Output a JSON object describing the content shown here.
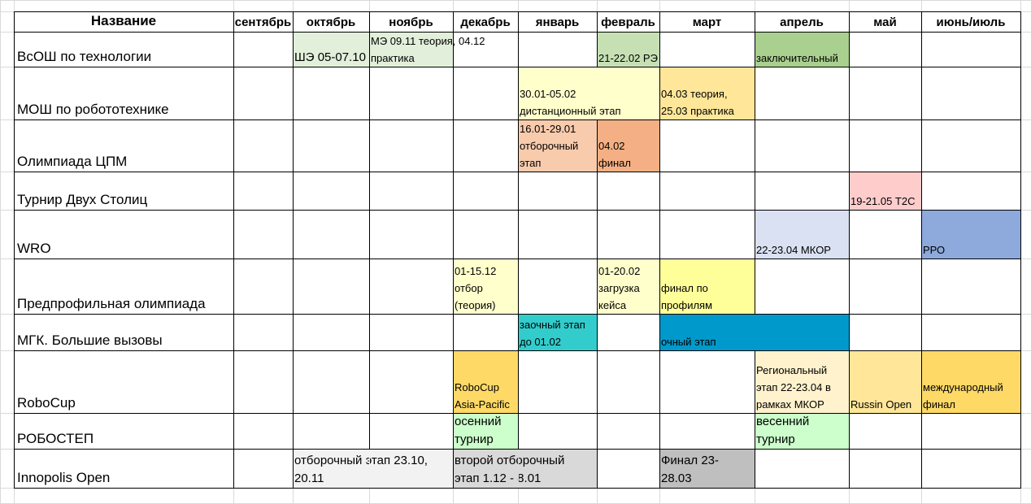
{
  "headers": {
    "name": "Название",
    "months": [
      "сентябрь",
      "октябрь",
      "ноябрь",
      "декабрь",
      "январь",
      "февраль",
      "март",
      "апрель",
      "май",
      "июнь/июль"
    ]
  },
  "rows": [
    {
      "name": "ВсОШ по технологии",
      "events": [
        {
          "col": 1,
          "span": 1,
          "lines": [
            "ШЭ 05-07.10"
          ],
          "color": "#e2efda",
          "big": true
        },
        {
          "col": 2,
          "span": 1,
          "lines": [
            "МЭ 09.11 теория, 04.12",
            "практика"
          ],
          "color": "#e2efda"
        },
        {
          "col": 5,
          "span": 1,
          "lines": [
            "21-22.02  РЭ"
          ],
          "color": "#c6e0b4"
        },
        {
          "col": 7,
          "span": 1,
          "lines": [
            "заключительный"
          ],
          "color": "#a9d08e"
        }
      ]
    },
    {
      "name": "МОШ по робототехнике",
      "events": [
        {
          "col": 4,
          "span": 2,
          "lines": [
            " 30.01-05.02",
            "дистанционный этап"
          ],
          "color": "#ffffcc"
        },
        {
          "col": 6,
          "span": 1,
          "lines": [
            "04.03 теория,",
            "25.03 практика"
          ],
          "color": "#ffe699"
        }
      ]
    },
    {
      "name": "Олимпиада ЦПМ",
      "events": [
        {
          "col": 4,
          "span": 1,
          "lines": [
            "16.01-29.01",
            "отборочный",
            "этап"
          ],
          "color": "#f8cbad"
        },
        {
          "col": 5,
          "span": 1,
          "lines": [
            "04.02",
            "финал"
          ],
          "color": "#f4b084"
        }
      ]
    },
    {
      "name": "Турнир Двух Столиц",
      "events": [
        {
          "col": 8,
          "span": 1,
          "lines": [
            "19-21.05 Т2С"
          ],
          "color": "#ffcccc"
        }
      ]
    },
    {
      "name": "WRO",
      "events": [
        {
          "col": 7,
          "span": 1,
          "lines": [
            " 22-23.04 МКОР"
          ],
          "color": "#d9e1f2"
        },
        {
          "col": 9,
          "span": 1,
          "lines": [
            "РРО"
          ],
          "color": "#8ea9db"
        }
      ]
    },
    {
      "name": "Предпрофильная олимпиада",
      "events": [
        {
          "col": 3,
          "span": 1,
          "lines": [
            "01-15.12",
            "отбор",
            "(теория)"
          ],
          "color": "#ffffcc"
        },
        {
          "col": 5,
          "span": 1,
          "lines": [
            "01-20.02",
            "загрузка",
            "кейса"
          ],
          "color": "#ffffcc"
        },
        {
          "col": 6,
          "span": 1,
          "lines": [
            "финал по",
            "профилям"
          ],
          "color": "#ffff99"
        }
      ]
    },
    {
      "name": "МГК. Большие вызовы",
      "events": [
        {
          "col": 4,
          "span": 1,
          "lines": [
            "заочный этап",
            "до 01.02"
          ],
          "color": "#33cccc"
        },
        {
          "col": 6,
          "span": 2,
          "lines": [
            "очный этап"
          ],
          "color": "#0099cc"
        }
      ]
    },
    {
      "name": "RoboCup",
      "events": [
        {
          "col": 3,
          "span": 1,
          "lines": [
            "RoboCup",
            "Asia-Pacific"
          ],
          "color": "#ffd966"
        },
        {
          "col": 7,
          "span": 1,
          "lines": [
            "Региональный",
            "этап 22-23.04 в",
            "рамках МКОР"
          ],
          "color": "#fff2cc"
        },
        {
          "col": 8,
          "span": 1,
          "lines": [
            "Russin Open"
          ],
          "color": "#ffe699"
        },
        {
          "col": 9,
          "span": 1,
          "lines": [
            "международный",
            "финал"
          ],
          "color": "#ffd966"
        }
      ]
    },
    {
      "name": "РОБОСТЕП",
      "events": [
        {
          "col": 3,
          "span": 1,
          "lines": [
            "осенний",
            "турнир"
          ],
          "color": "#ccffcc",
          "big": true
        },
        {
          "col": 7,
          "span": 1,
          "lines": [
            "весенний",
            "турнир"
          ],
          "color": "#ccffcc",
          "big": true
        }
      ]
    },
    {
      "name": "Innopolis Open",
      "events": [
        {
          "col": 1,
          "span": 2,
          "lines": [
            "отборочный этап 23.10,",
            "20.11"
          ],
          "color": "#f2f2f2",
          "big": true
        },
        {
          "col": 3,
          "span": 2,
          "lines": [
            "второй отборочный",
            "этап 1.12 - 8.01"
          ],
          "color": "#d9d9d9",
          "big": true
        },
        {
          "col": 6,
          "span": 1,
          "lines": [
            "Финал 23-",
            "28.03"
          ],
          "color": "#bfbfbf",
          "big": true
        }
      ]
    }
  ]
}
